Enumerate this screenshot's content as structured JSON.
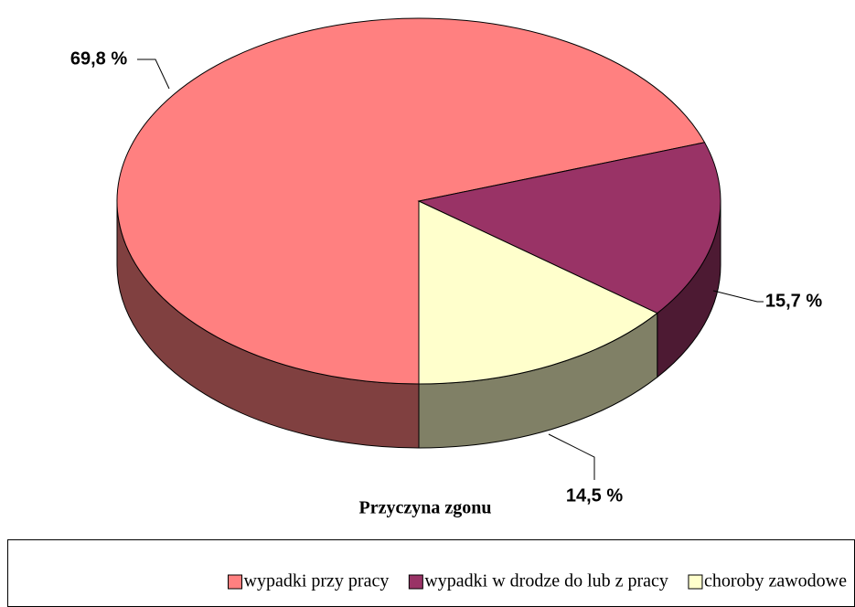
{
  "chart_data": {
    "type": "pie3d",
    "title": "Przyczyna zgonu",
    "categories": [
      "wypadki przy pracy",
      "wypadki w drodze do lub z pracy",
      "choroby zawodowe"
    ],
    "values": [
      69.8,
      15.7,
      14.5
    ],
    "value_labels": [
      "69,8 %",
      "15,7 %",
      "14,5 %"
    ],
    "colors": [
      "#ff8080",
      "#993366",
      "#ffffcc"
    ],
    "legend": "bottom"
  }
}
